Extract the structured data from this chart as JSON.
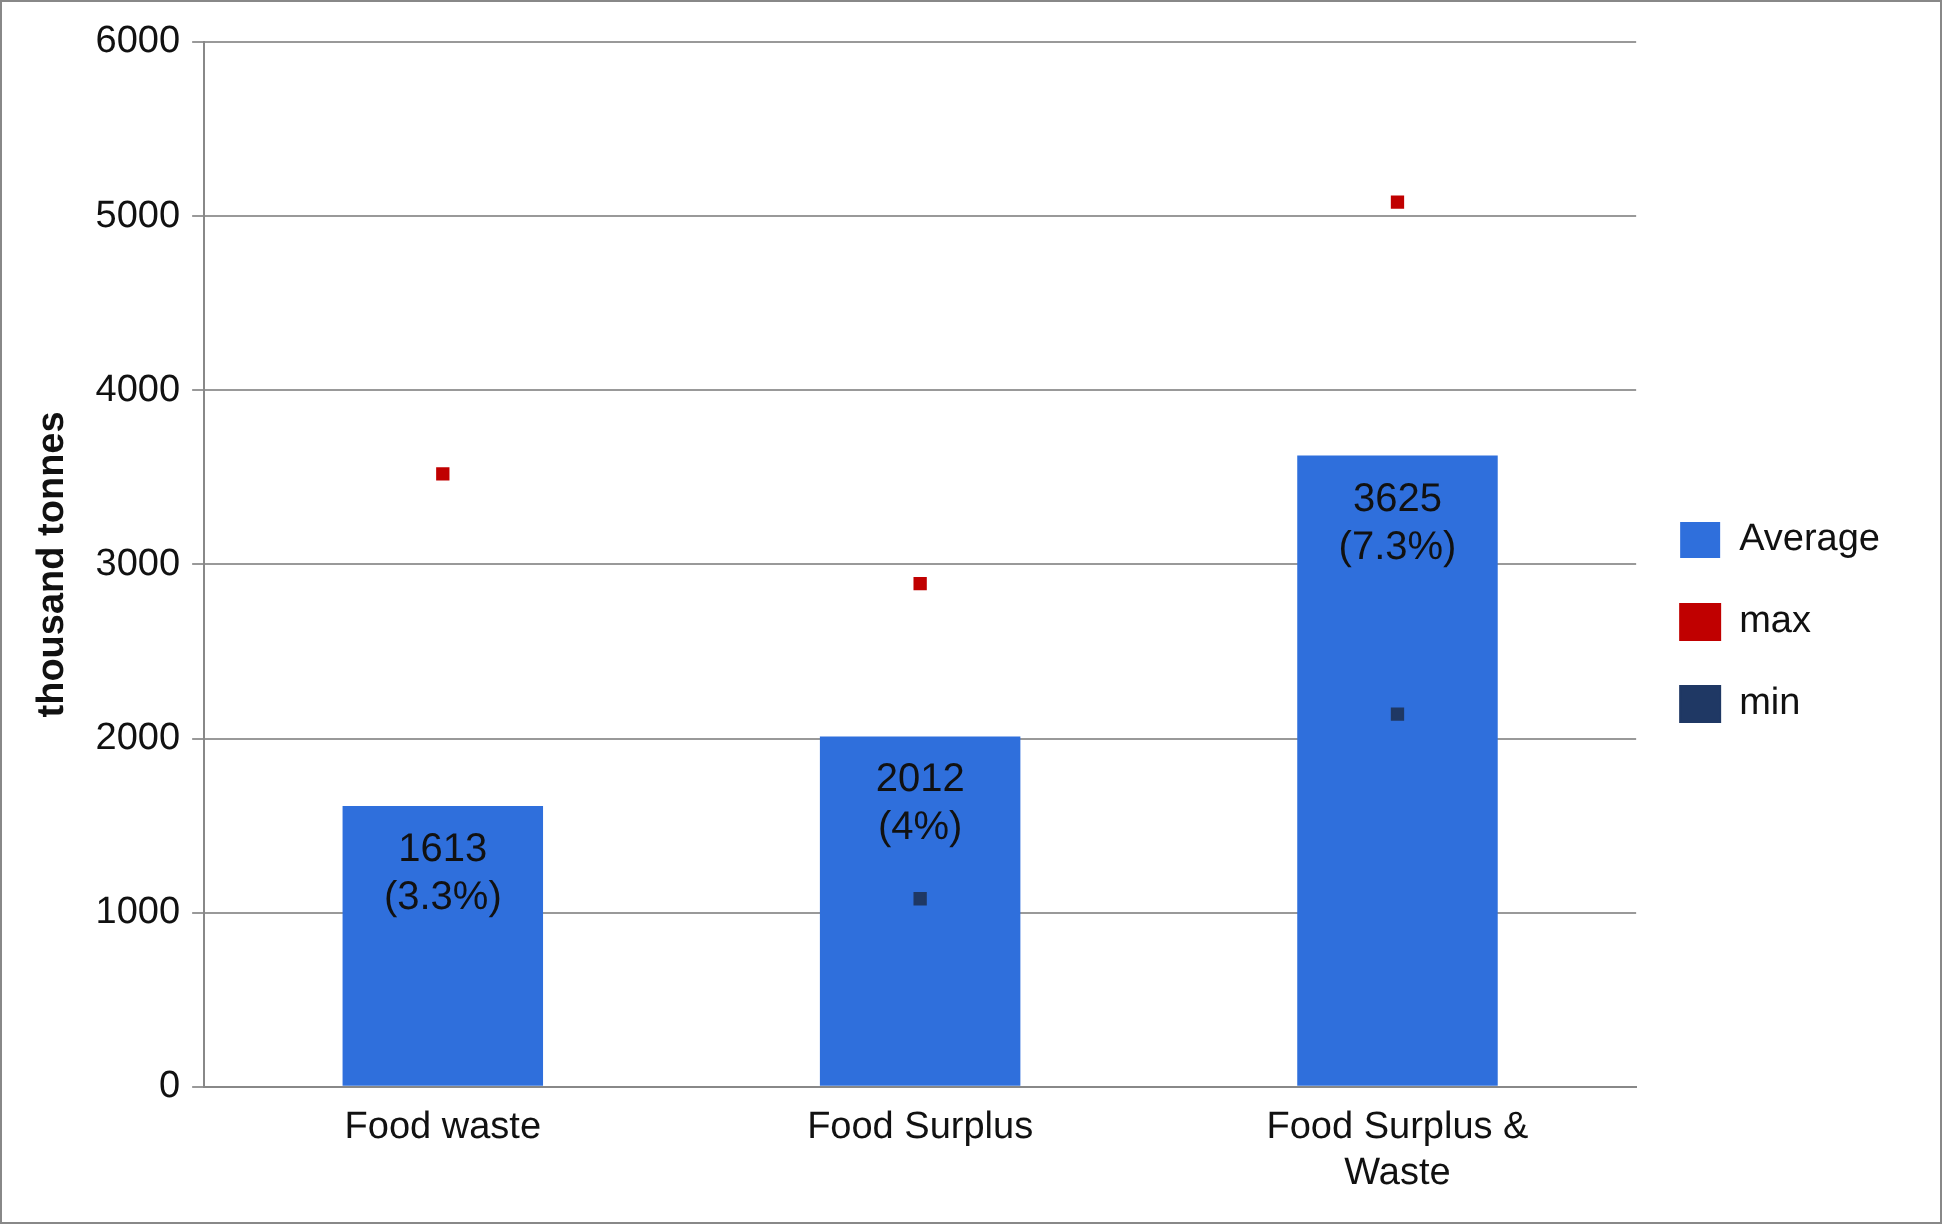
{
  "chart_data": {
    "type": "bar",
    "ylabel": "thousand tonnes",
    "categories": [
      "Food waste",
      "Food Surplus",
      "Food Surplus & Waste"
    ],
    "series": [
      {
        "name": "Average",
        "color": "#2f6fdc",
        "values": [
          1613,
          2012,
          3625
        ],
        "value_labels": [
          "1613 (3.3%)",
          "2012 (4%)",
          "3625 (7.3%)"
        ]
      },
      {
        "name": "max",
        "type": "scatter",
        "marker": "square",
        "color": "#c00000",
        "values": [
          3520,
          2890,
          5080
        ]
      },
      {
        "name": "min",
        "type": "scatter",
        "marker": "square",
        "color": "#1f3864",
        "values": [
          null,
          1080,
          2140
        ]
      }
    ],
    "ylim": [
      0,
      6000
    ],
    "yticks": [
      0,
      1000,
      2000,
      3000,
      4000,
      5000,
      6000
    ],
    "grid": "y",
    "legend": "right"
  }
}
